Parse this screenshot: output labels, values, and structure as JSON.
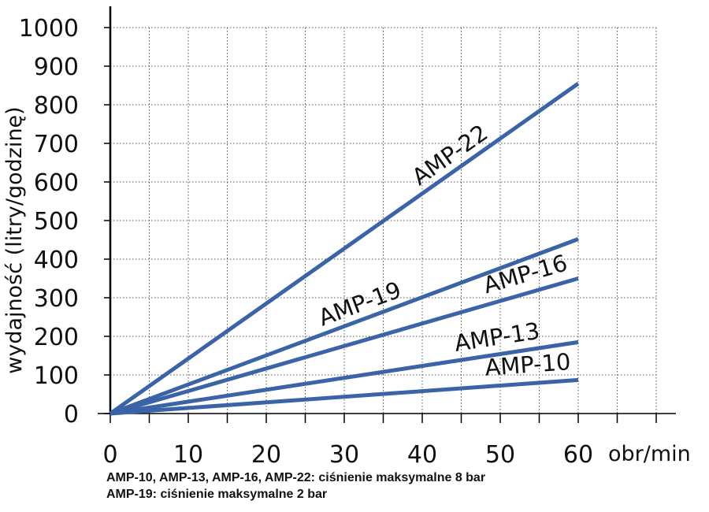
{
  "chart_data": {
    "type": "line",
    "xlabel": "obr/min",
    "ylabel": "wydajność (litry/godzinę)",
    "xlim": [
      0,
      70
    ],
    "ylim": [
      0,
      1000
    ],
    "x_ticks": [
      0,
      10,
      20,
      30,
      40,
      50,
      60
    ],
    "y_ticks": [
      0,
      100,
      200,
      300,
      400,
      500,
      600,
      700,
      800,
      900,
      1000
    ],
    "grid": true,
    "legend": "none",
    "colors": {
      "series": "#3a63a8",
      "grid": "#555555",
      "axis": "#000000"
    },
    "series": [
      {
        "name": "AMP-22",
        "x": [
          0,
          60
        ],
        "y": [
          0,
          855
        ]
      },
      {
        "name": "AMP-19",
        "x": [
          0,
          60
        ],
        "y": [
          0,
          452
        ]
      },
      {
        "name": "AMP-16",
        "x": [
          0,
          60
        ],
        "y": [
          0,
          350
        ]
      },
      {
        "name": "AMP-13",
        "x": [
          0,
          60
        ],
        "y": [
          0,
          185
        ]
      },
      {
        "name": "AMP-10",
        "x": [
          0,
          60
        ],
        "y": [
          0,
          87
        ]
      }
    ]
  },
  "notes": {
    "line1": "AMP-10, AMP-13, AMP-16, AMP-22: ciśnienie maksymalne 8 bar",
    "line2": "AMP-19: ciśnienie maksymalne 2 bar"
  }
}
